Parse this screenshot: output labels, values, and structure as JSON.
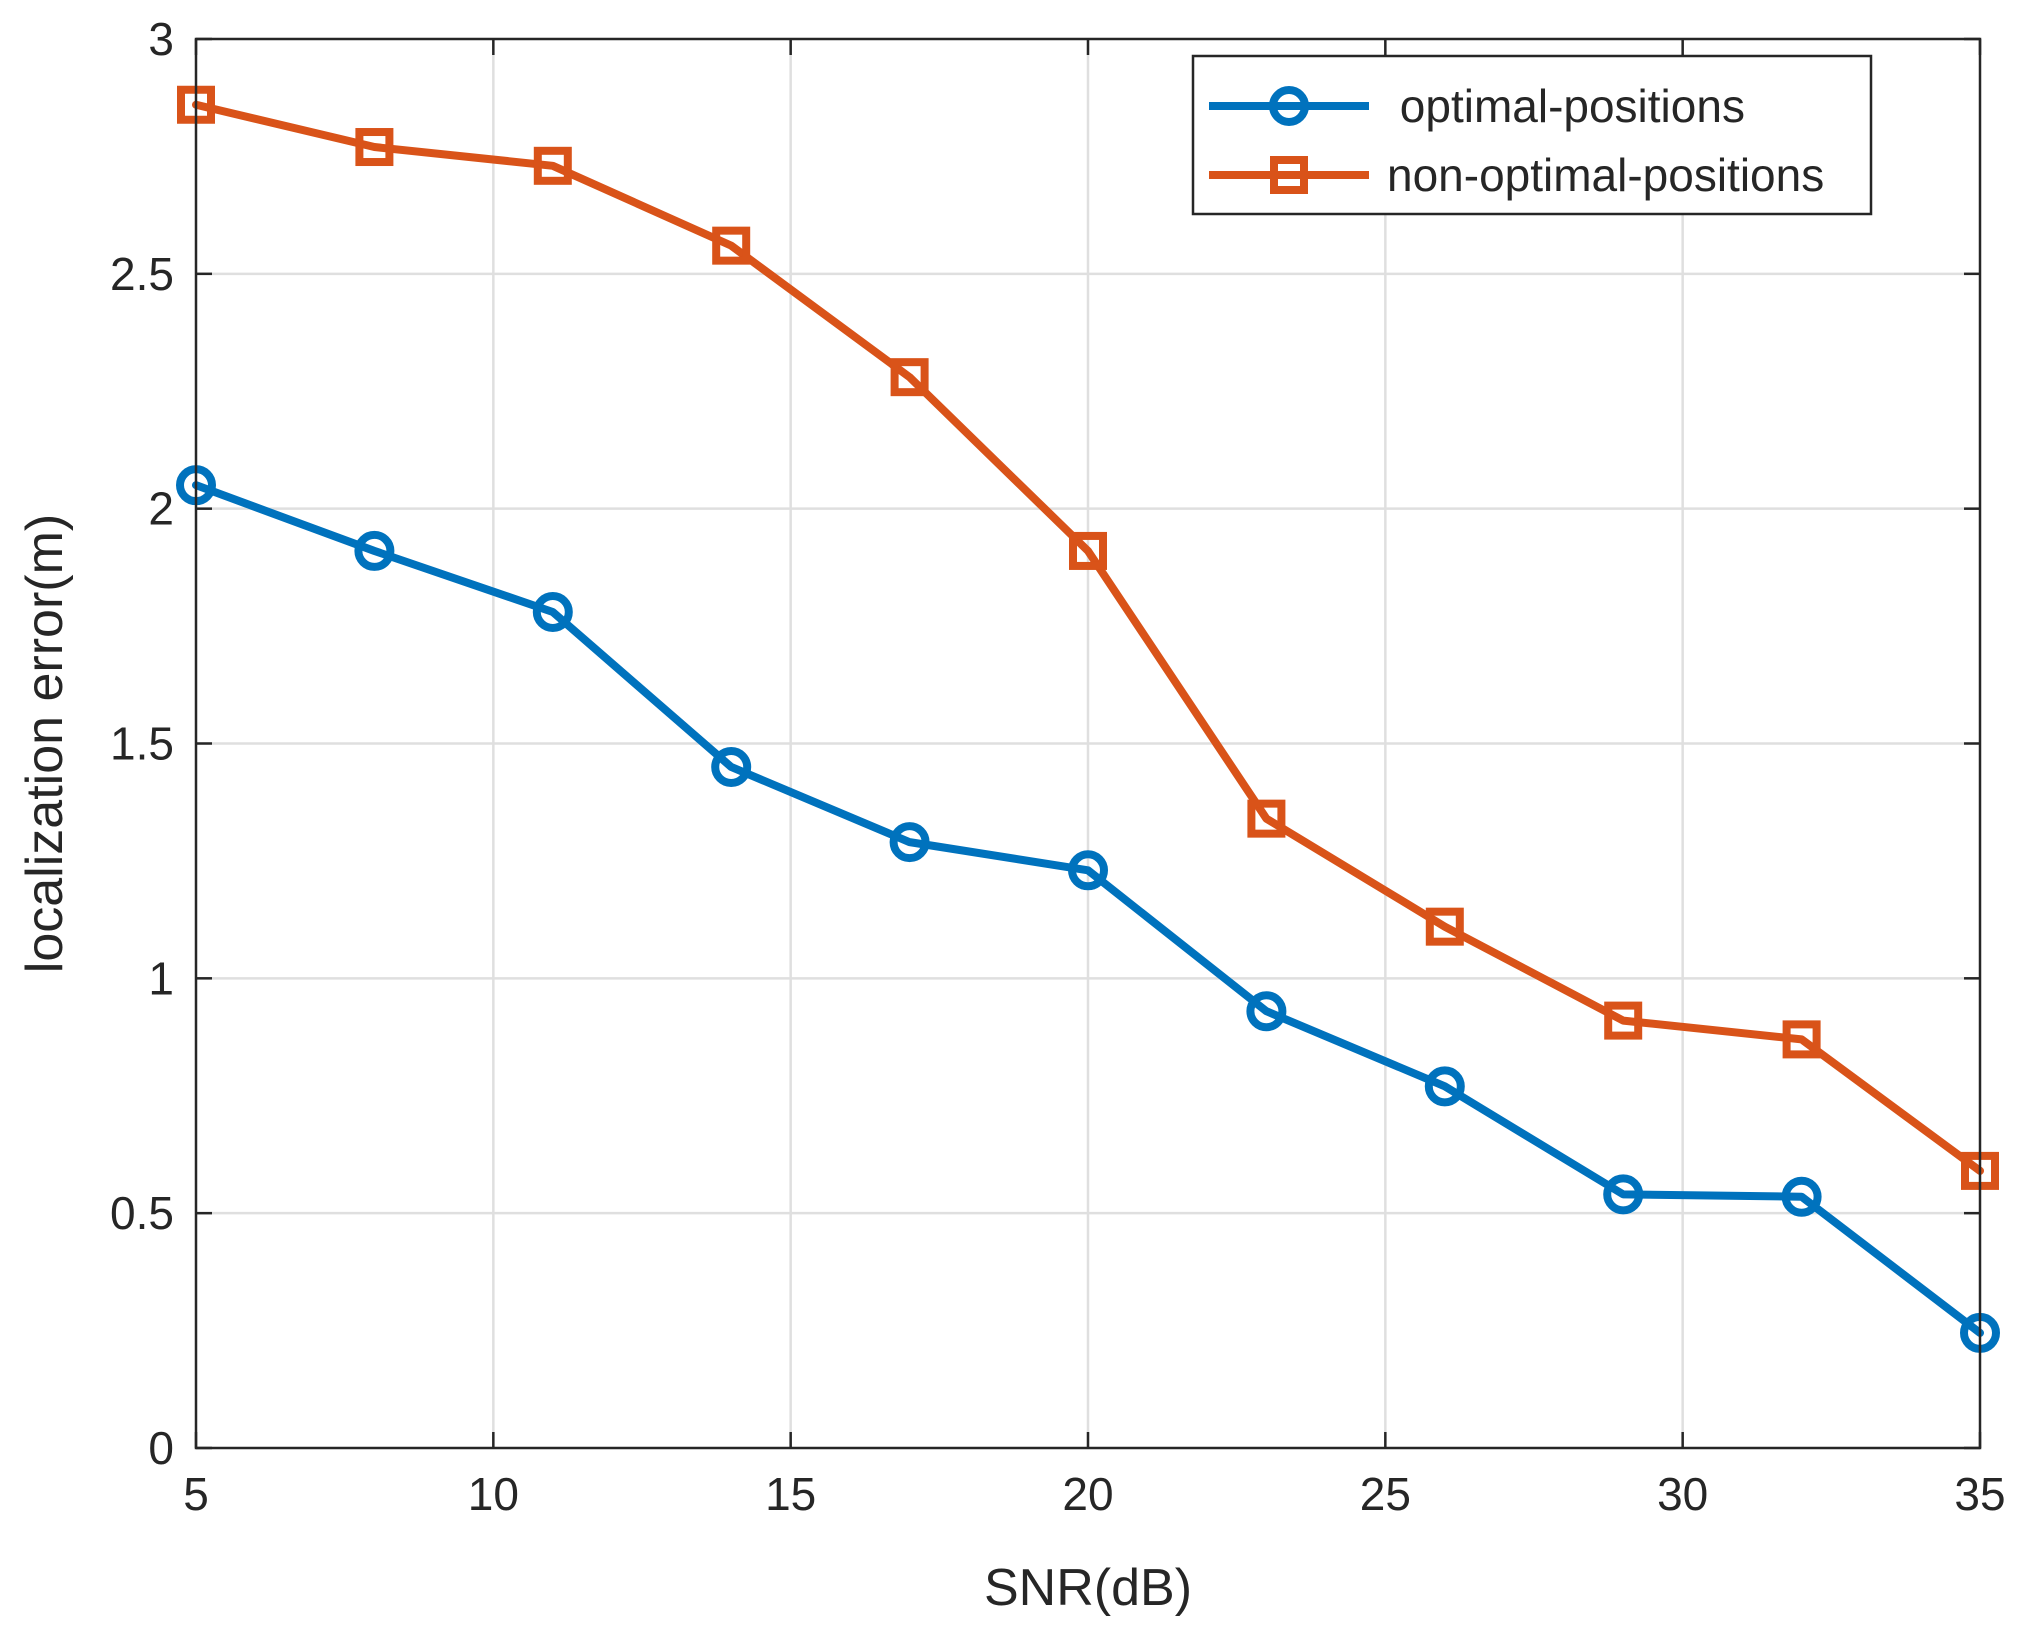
{
  "chart_data": {
    "type": "line",
    "title": "",
    "xlabel": "SNR(dB)",
    "ylabel": "localization error(m)",
    "xlim": [
      5,
      35
    ],
    "ylim": [
      0,
      3
    ],
    "xticks": [
      5,
      10,
      15,
      20,
      25,
      30,
      35
    ],
    "yticks": [
      0,
      0.5,
      1,
      1.5,
      2,
      2.5,
      3
    ],
    "xtick_labels": [
      "5",
      "10",
      "15",
      "20",
      "25",
      "30",
      "35"
    ],
    "ytick_labels": [
      "0",
      "0.5",
      "1",
      "1.5",
      "2",
      "2.5",
      "3"
    ],
    "grid": true,
    "legend_position": "top-right",
    "x": [
      5,
      8,
      11,
      14,
      17,
      20,
      23,
      26,
      29,
      32,
      35
    ],
    "series": [
      {
        "name": " optimal-positions",
        "marker": "circle",
        "color": "#0072BD",
        "values": [
          2.05,
          1.91,
          1.78,
          1.45,
          1.29,
          1.23,
          0.93,
          0.77,
          0.54,
          0.535,
          0.245
        ]
      },
      {
        "name": "non-optimal-positions",
        "marker": "square",
        "color": "#D95319",
        "values": [
          2.86,
          2.77,
          2.73,
          2.56,
          2.28,
          1.91,
          1.34,
          1.11,
          0.91,
          0.87,
          0.59
        ]
      }
    ]
  }
}
